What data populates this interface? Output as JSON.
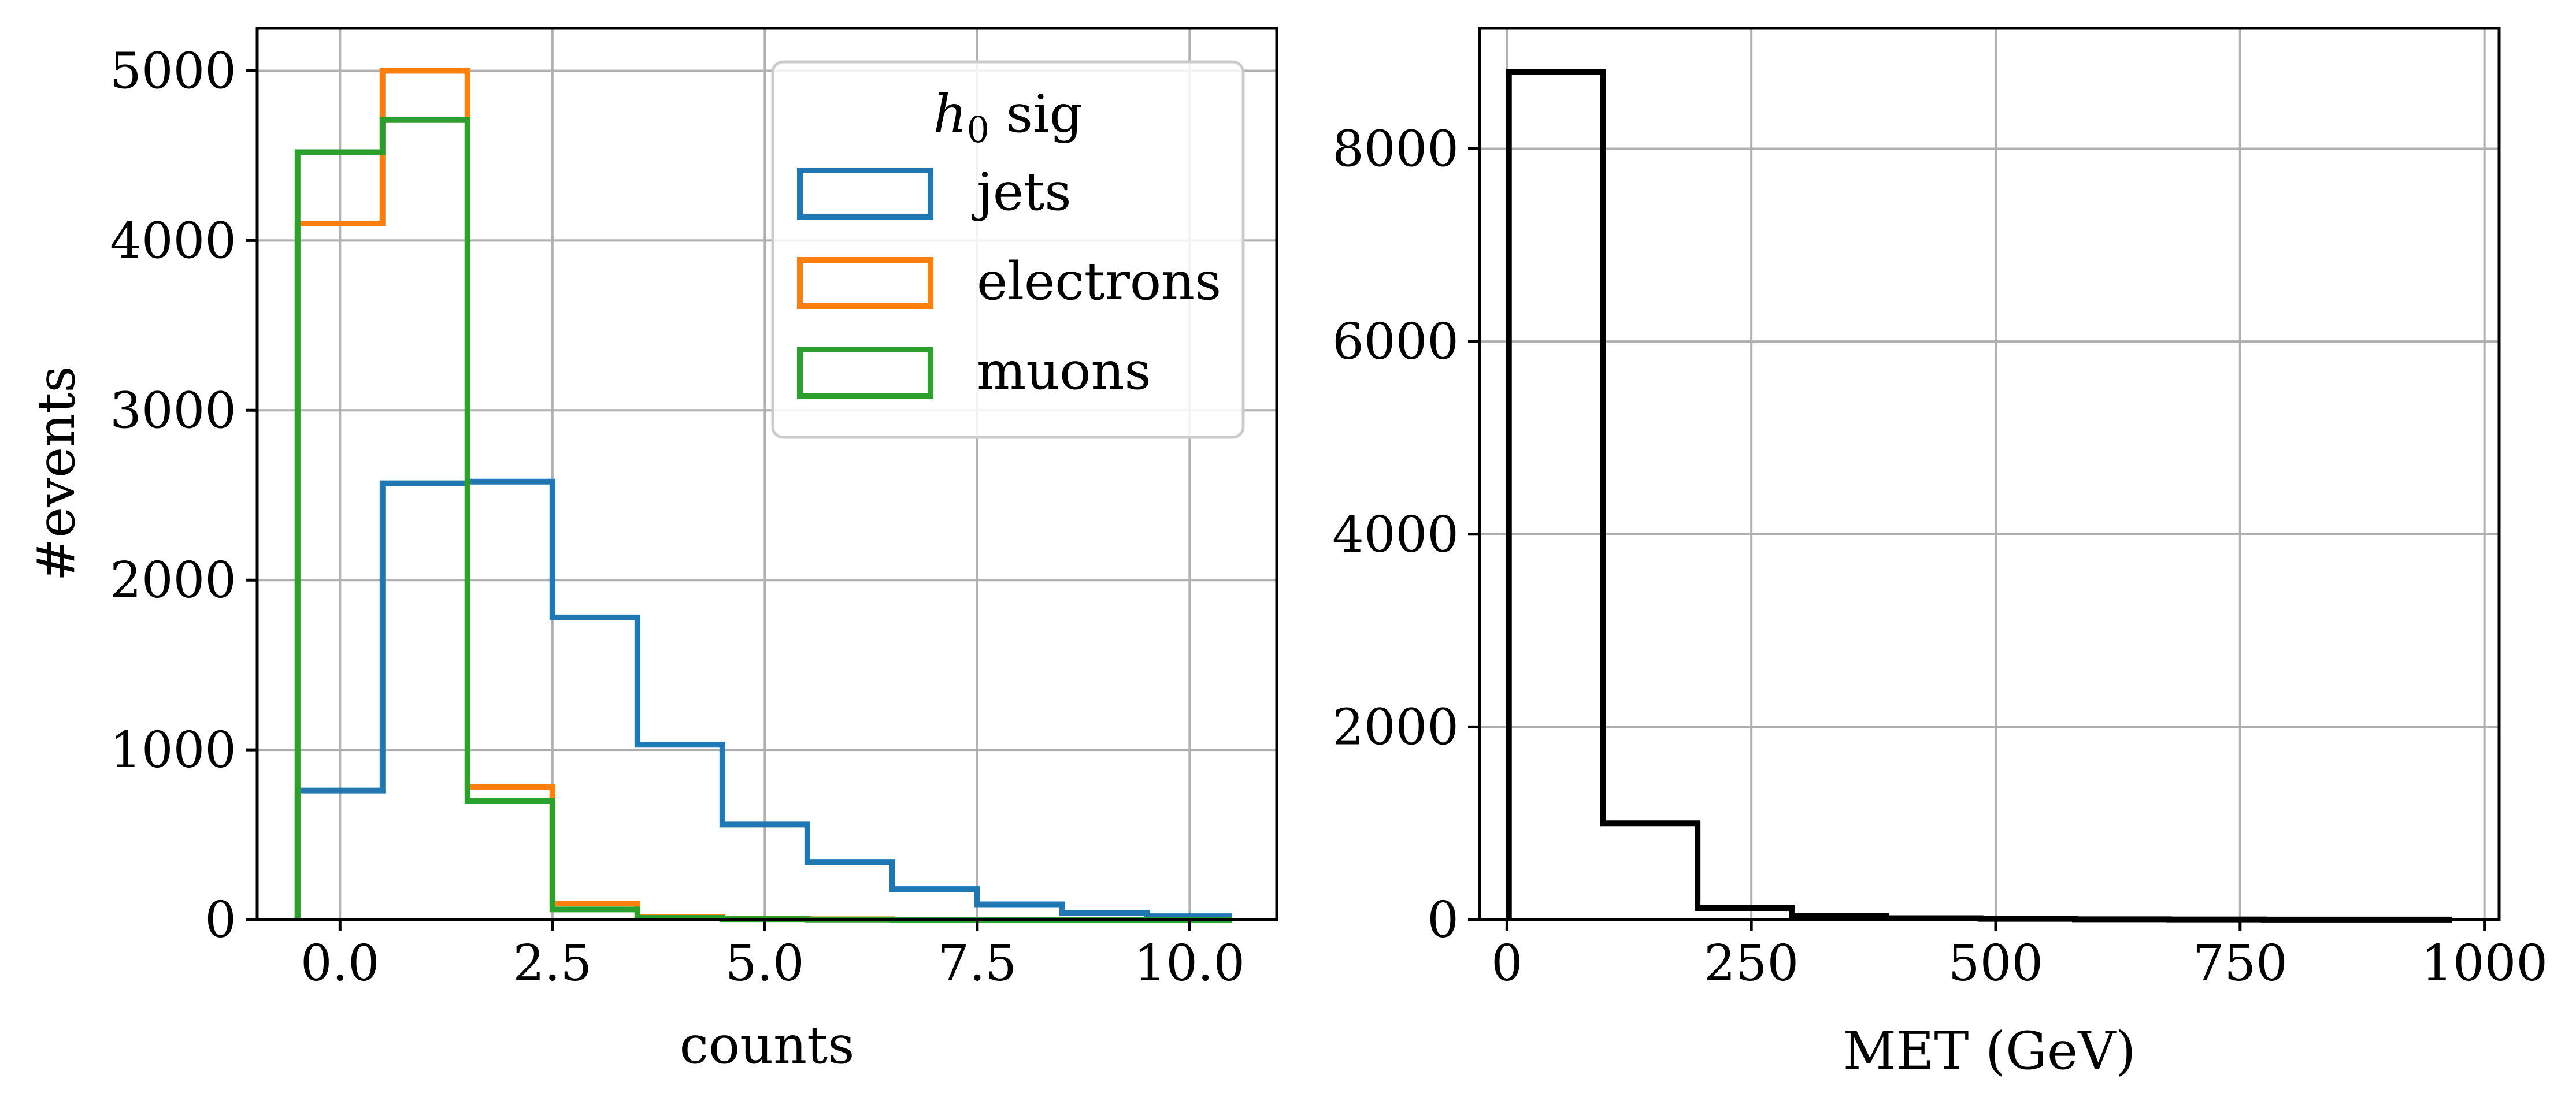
{
  "chart_data": [
    {
      "type": "histogram",
      "xlabel": "counts",
      "ylabel": "#events",
      "xlim": [
        -0.975,
        11.025
      ],
      "ylim": [
        0,
        5250
      ],
      "grid": true,
      "xticks": [
        "0.0",
        "2.5",
        "5.0",
        "7.5",
        "10.0"
      ],
      "xtick_values": [
        0,
        2.5,
        5,
        7.5,
        10
      ],
      "yticks": [
        "0",
        "1000",
        "2000",
        "3000",
        "4000",
        "5000"
      ],
      "ytick_values": [
        0,
        1000,
        2000,
        3000,
        4000,
        5000
      ],
      "bin_edges": [
        -0.5,
        0.5,
        1.5,
        2.5,
        3.5,
        4.5,
        5.5,
        6.5,
        7.5,
        8.5,
        9.5,
        10.5
      ],
      "legend": {
        "title_main": "h",
        "title_sub": "0",
        "title_rest": " sig",
        "position": "top-right"
      },
      "series": [
        {
          "name": "jets",
          "color": "#1f77b4",
          "values": [
            760,
            2570,
            2580,
            1780,
            1030,
            560,
            340,
            180,
            90,
            40,
            20
          ]
        },
        {
          "name": "electrons",
          "color": "#ff7f0e",
          "values": [
            4100,
            5000,
            780,
            95,
            15,
            5,
            2,
            0,
            0,
            0,
            0
          ]
        },
        {
          "name": "muons",
          "color": "#2ca02c",
          "values": [
            4520,
            4710,
            700,
            60,
            10,
            3,
            1,
            0,
            0,
            0,
            0
          ]
        }
      ]
    },
    {
      "type": "histogram",
      "xlabel": "MET (GeV)",
      "ylabel": "",
      "xlim": [
        -28,
        1015
      ],
      "ylim": [
        0,
        9250
      ],
      "grid": true,
      "xticks": [
        "0",
        "250",
        "500",
        "750",
        "1000"
      ],
      "xtick_values": [
        0,
        250,
        500,
        750,
        1000
      ],
      "yticks": [
        "0",
        "2000",
        "4000",
        "6000",
        "8000"
      ],
      "ytick_values": [
        0,
        2000,
        4000,
        6000,
        8000
      ],
      "bin_edges": [
        2,
        98.5,
        195,
        291.5,
        388,
        484.5,
        581,
        677.5,
        774,
        870.5,
        967
      ],
      "series": [
        {
          "name": "MET",
          "color": "#000000",
          "values": [
            8800,
            1000,
            120,
            40,
            15,
            8,
            4,
            2,
            1,
            1
          ]
        }
      ]
    }
  ]
}
